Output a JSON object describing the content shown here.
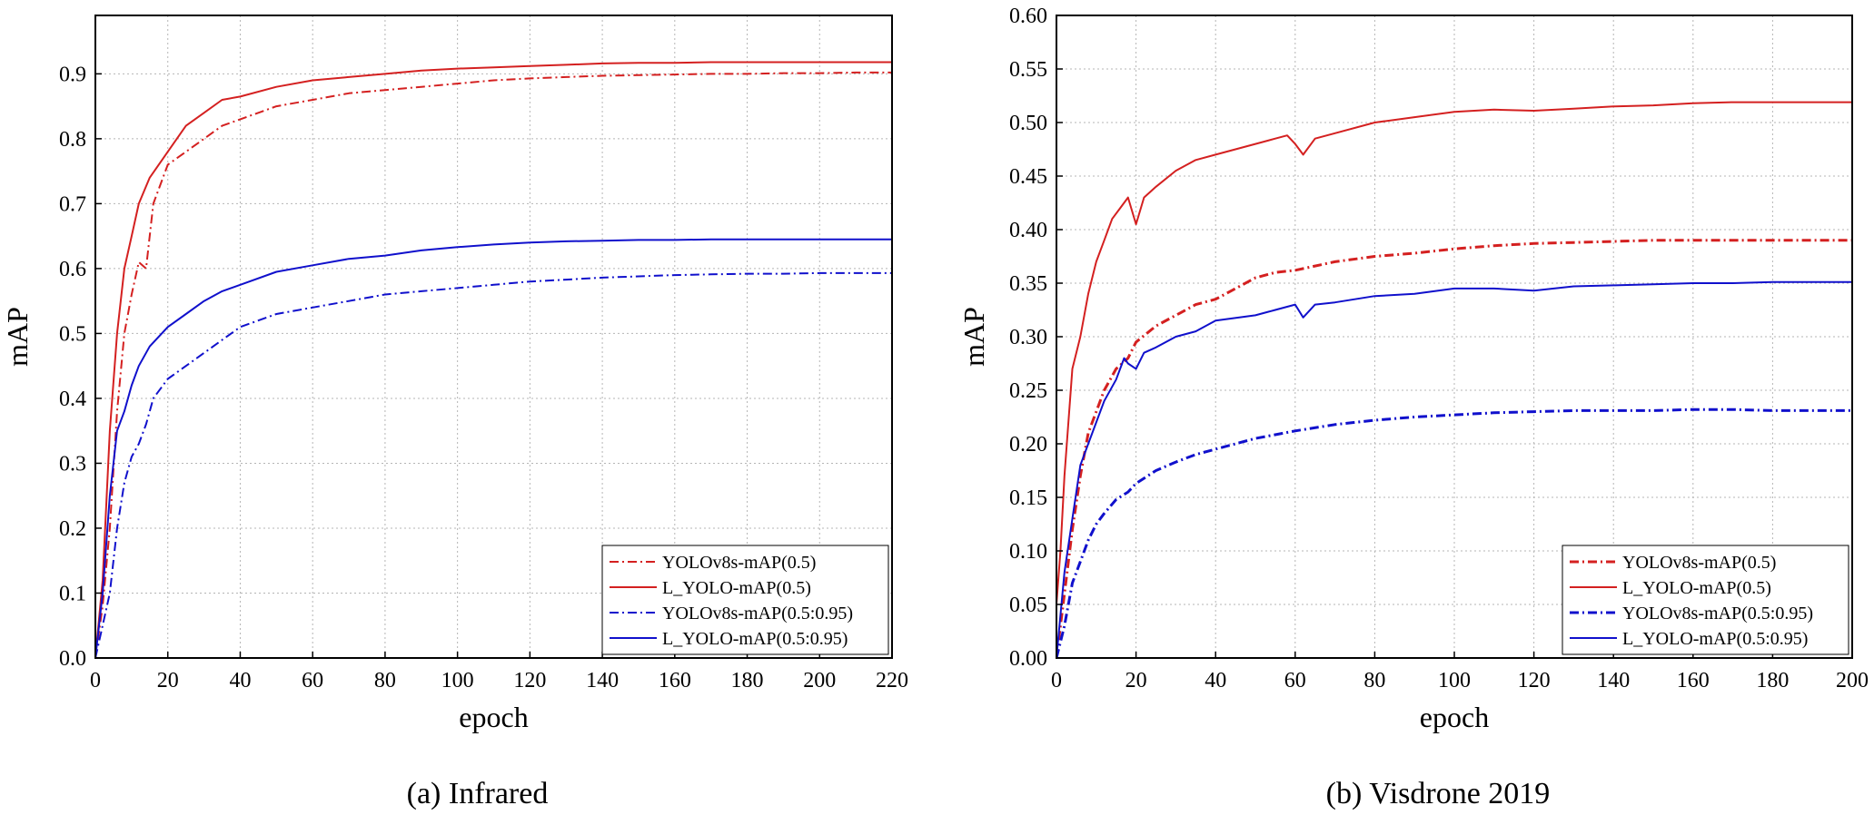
{
  "chart_data": [
    {
      "type": "line",
      "caption": "(a) Infrared",
      "xlabel": "epoch",
      "ylabel": "mAP",
      "xlim": [
        0,
        220
      ],
      "ylim": [
        0,
        0.99
      ],
      "xticks": [
        0,
        20,
        40,
        60,
        80,
        100,
        120,
        140,
        160,
        180,
        200,
        220
      ],
      "xtick_labels": [
        "0",
        "20",
        "40",
        "60",
        "80",
        "100",
        "120",
        "140",
        "160",
        "180",
        "200",
        "220"
      ],
      "yticks": [
        0,
        0.1,
        0.2,
        0.3,
        0.4,
        0.5,
        0.6,
        0.7,
        0.8,
        0.9
      ],
      "ytick_labels": [
        "0.0",
        "0.1",
        "0.2",
        "0.3",
        "0.4",
        "0.5",
        "0.6",
        "0.7",
        "0.8",
        "0.9"
      ],
      "grid": true,
      "legend_position": "bottom-right",
      "series": [
        {
          "name": "YOLOv8s-mAP(0.5)",
          "color": "#d42020",
          "dash": "dashdot",
          "x": [
            0,
            2,
            4,
            6,
            8,
            10,
            12,
            14,
            16,
            20,
            25,
            30,
            35,
            40,
            50,
            60,
            70,
            80,
            90,
            100,
            110,
            120,
            130,
            140,
            150,
            160,
            170,
            180,
            190,
            200,
            210,
            220
          ],
          "y": [
            0.0,
            0.08,
            0.2,
            0.38,
            0.5,
            0.56,
            0.61,
            0.6,
            0.7,
            0.76,
            0.78,
            0.8,
            0.82,
            0.83,
            0.85,
            0.86,
            0.87,
            0.875,
            0.88,
            0.885,
            0.89,
            0.893,
            0.895,
            0.897,
            0.898,
            0.899,
            0.9,
            0.9,
            0.901,
            0.901,
            0.902,
            0.902
          ]
        },
        {
          "name": "L_YOLO-mAP(0.5)",
          "color": "#d42020",
          "dash": "solid",
          "x": [
            0,
            2,
            4,
            6,
            8,
            10,
            12,
            15,
            20,
            25,
            30,
            35,
            40,
            50,
            60,
            70,
            80,
            90,
            100,
            110,
            120,
            130,
            140,
            150,
            160,
            170,
            180,
            190,
            200,
            210,
            220
          ],
          "y": [
            0.0,
            0.12,
            0.35,
            0.5,
            0.6,
            0.65,
            0.7,
            0.74,
            0.78,
            0.82,
            0.84,
            0.86,
            0.865,
            0.88,
            0.89,
            0.895,
            0.9,
            0.905,
            0.908,
            0.91,
            0.912,
            0.914,
            0.916,
            0.917,
            0.917,
            0.918,
            0.918,
            0.918,
            0.918,
            0.918,
            0.918
          ]
        },
        {
          "name": "YOLOv8s-mAP(0.5:0.95)",
          "color": "#1010cc",
          "dash": "dashdot",
          "x": [
            0,
            2,
            4,
            6,
            8,
            10,
            12,
            14,
            16,
            20,
            25,
            30,
            35,
            40,
            50,
            60,
            70,
            80,
            90,
            100,
            110,
            120,
            130,
            140,
            150,
            160,
            170,
            180,
            190,
            200,
            210,
            220
          ],
          "y": [
            0.0,
            0.05,
            0.1,
            0.2,
            0.27,
            0.31,
            0.33,
            0.36,
            0.4,
            0.43,
            0.45,
            0.47,
            0.49,
            0.51,
            0.53,
            0.54,
            0.55,
            0.56,
            0.565,
            0.57,
            0.575,
            0.58,
            0.583,
            0.586,
            0.588,
            0.59,
            0.591,
            0.592,
            0.592,
            0.593,
            0.593,
            0.593
          ]
        },
        {
          "name": "L_YOLO-mAP(0.5:0.95)",
          "color": "#1010cc",
          "dash": "solid",
          "x": [
            0,
            2,
            4,
            6,
            8,
            10,
            12,
            15,
            20,
            25,
            30,
            35,
            40,
            50,
            60,
            70,
            80,
            90,
            100,
            110,
            120,
            130,
            140,
            150,
            160,
            170,
            180,
            190,
            200,
            210,
            220
          ],
          "y": [
            0.0,
            0.1,
            0.25,
            0.35,
            0.38,
            0.42,
            0.45,
            0.48,
            0.51,
            0.53,
            0.55,
            0.565,
            0.575,
            0.595,
            0.605,
            0.615,
            0.62,
            0.628,
            0.633,
            0.637,
            0.64,
            0.642,
            0.643,
            0.644,
            0.644,
            0.645,
            0.645,
            0.645,
            0.645,
            0.645,
            0.645
          ]
        }
      ]
    },
    {
      "type": "line",
      "caption": "(b) Visdrone 2019",
      "xlabel": "epoch",
      "ylabel": "mAP",
      "xlim": [
        0,
        200
      ],
      "ylim": [
        0,
        0.6
      ],
      "xticks": [
        0,
        20,
        40,
        60,
        80,
        100,
        120,
        140,
        160,
        180,
        200
      ],
      "xtick_labels": [
        "0",
        "20",
        "40",
        "60",
        "80",
        "100",
        "120",
        "140",
        "160",
        "180",
        "200"
      ],
      "yticks": [
        0,
        0.05,
        0.1,
        0.15,
        0.2,
        0.25,
        0.3,
        0.35,
        0.4,
        0.45,
        0.5,
        0.55,
        0.6
      ],
      "ytick_labels": [
        "0.00",
        "0.05",
        "0.10",
        "0.15",
        "0.20",
        "0.25",
        "0.30",
        "0.35",
        "0.40",
        "0.45",
        "0.50",
        "0.55",
        "0.60"
      ],
      "grid": true,
      "legend_position": "bottom-right",
      "series": [
        {
          "name": "YOLOv8s-mAP(0.5)",
          "color": "#d42020",
          "dash": "dashdot",
          "x": [
            0,
            2,
            4,
            6,
            8,
            10,
            12,
            15,
            18,
            20,
            25,
            30,
            35,
            40,
            45,
            50,
            55,
            60,
            70,
            80,
            90,
            100,
            110,
            120,
            130,
            140,
            150,
            160,
            170,
            180,
            190,
            200
          ],
          "y": [
            0.0,
            0.06,
            0.12,
            0.17,
            0.21,
            0.23,
            0.25,
            0.27,
            0.28,
            0.295,
            0.31,
            0.32,
            0.33,
            0.335,
            0.345,
            0.355,
            0.36,
            0.362,
            0.37,
            0.375,
            0.378,
            0.382,
            0.385,
            0.387,
            0.388,
            0.389,
            0.39,
            0.39,
            0.39,
            0.39,
            0.39,
            0.39
          ]
        },
        {
          "name": "L_YOLO-mAP(0.5)",
          "color": "#d42020",
          "dash": "solid",
          "x": [
            0,
            1,
            2,
            4,
            6,
            8,
            10,
            12,
            14,
            16,
            18,
            20,
            22,
            25,
            30,
            35,
            40,
            45,
            50,
            55,
            58,
            60,
            62,
            65,
            70,
            80,
            90,
            100,
            110,
            120,
            130,
            140,
            150,
            160,
            170,
            180,
            190,
            200
          ],
          "y": [
            0.05,
            0.1,
            0.17,
            0.27,
            0.3,
            0.34,
            0.37,
            0.39,
            0.41,
            0.42,
            0.43,
            0.405,
            0.43,
            0.44,
            0.455,
            0.465,
            0.47,
            0.475,
            0.48,
            0.485,
            0.488,
            0.48,
            0.47,
            0.485,
            0.49,
            0.5,
            0.505,
            0.51,
            0.512,
            0.511,
            0.513,
            0.515,
            0.516,
            0.518,
            0.519,
            0.519,
            0.519,
            0.519
          ]
        },
        {
          "name": "YOLOv8s-mAP(0.5:0.95)",
          "color": "#1010cc",
          "dash": "dashdot",
          "x": [
            0,
            2,
            4,
            6,
            8,
            10,
            12,
            15,
            18,
            20,
            25,
            30,
            35,
            40,
            50,
            60,
            70,
            80,
            90,
            100,
            110,
            120,
            130,
            140,
            150,
            160,
            170,
            180,
            190,
            200
          ],
          "y": [
            0.0,
            0.03,
            0.07,
            0.09,
            0.11,
            0.125,
            0.135,
            0.148,
            0.155,
            0.163,
            0.175,
            0.183,
            0.19,
            0.195,
            0.205,
            0.212,
            0.218,
            0.222,
            0.225,
            0.227,
            0.229,
            0.23,
            0.231,
            0.231,
            0.231,
            0.232,
            0.232,
            0.231,
            0.231,
            0.231
          ]
        },
        {
          "name": "L_YOLO-mAP(0.5:0.95)",
          "color": "#1010cc",
          "dash": "solid",
          "x": [
            0,
            2,
            4,
            6,
            8,
            10,
            12,
            15,
            17,
            18,
            20,
            22,
            25,
            30,
            35,
            40,
            50,
            55,
            60,
            62,
            65,
            70,
            80,
            90,
            100,
            110,
            120,
            130,
            140,
            150,
            160,
            170,
            180,
            190,
            200
          ],
          "y": [
            0.0,
            0.08,
            0.13,
            0.18,
            0.2,
            0.22,
            0.24,
            0.26,
            0.28,
            0.275,
            0.27,
            0.285,
            0.29,
            0.3,
            0.305,
            0.315,
            0.32,
            0.325,
            0.33,
            0.318,
            0.33,
            0.332,
            0.338,
            0.34,
            0.345,
            0.345,
            0.343,
            0.347,
            0.348,
            0.349,
            0.35,
            0.35,
            0.351,
            0.351,
            0.351
          ]
        }
      ]
    }
  ]
}
